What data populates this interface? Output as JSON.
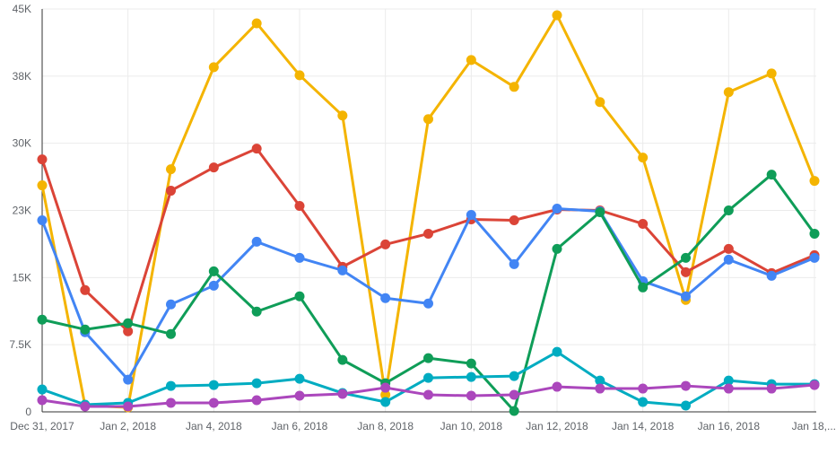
{
  "chart_data": {
    "type": "line",
    "title": "",
    "xlabel": "",
    "ylabel": "",
    "ylim": [
      0,
      45000
    ],
    "grid": true,
    "x": [
      "Dec 31, 2017",
      "Jan 1, 2018",
      "Jan 2, 2018",
      "Jan 3, 2018",
      "Jan 4, 2018",
      "Jan 5, 2018",
      "Jan 6, 2018",
      "Jan 7, 2018",
      "Jan 8, 2018",
      "Jan 9, 2018",
      "Jan 10, 2018",
      "Jan 11, 2018",
      "Jan 12, 2018",
      "Jan 13, 2018",
      "Jan 14, 2018",
      "Jan 15, 2018",
      "Jan 16, 2018",
      "Jan 17, 2018",
      "Jan 18, 2018"
    ],
    "x_tick_labels": [
      "Dec 31, 2017",
      "Jan 2, 2018",
      "Jan 4, 2018",
      "Jan 6, 2018",
      "Jan 8, 2018",
      "Jan 10, 2018",
      "Jan 12, 2018",
      "Jan 14, 2018",
      "Jan 16, 2018",
      "Jan 18,..."
    ],
    "y_ticks": [
      0,
      7500,
      15000,
      22500,
      30000,
      37500,
      45000
    ],
    "y_tick_labels": [
      "0",
      "7.5K",
      "15K",
      "23K",
      "30K",
      "38K",
      "45K"
    ],
    "series": [
      {
        "name": "yellow",
        "color": "#f4b400",
        "values": [
          25300,
          700,
          500,
          27100,
          38500,
          43400,
          37600,
          33100,
          1900,
          32700,
          39300,
          36300,
          44300,
          34600,
          28400,
          12500,
          35700,
          37800,
          25800
        ]
      },
      {
        "name": "red",
        "color": "#db4437",
        "values": [
          28200,
          13600,
          9000,
          24700,
          27300,
          29400,
          23000,
          16200,
          18700,
          19900,
          21500,
          21400,
          22600,
          22500,
          21000,
          15600,
          18200,
          15500,
          17500
        ]
      },
      {
        "name": "blue",
        "color": "#4285f4",
        "values": [
          21400,
          8900,
          3600,
          12000,
          14100,
          19000,
          17200,
          15800,
          12700,
          12100,
          22000,
          16500,
          22700,
          22400,
          14600,
          12900,
          17000,
          15200,
          17200
        ]
      },
      {
        "name": "green",
        "color": "#0f9d58",
        "values": [
          10300,
          9200,
          9900,
          8700,
          15700,
          11200,
          12900,
          5800,
          3200,
          6000,
          5400,
          100,
          18200,
          22300,
          13900,
          17200,
          22500,
          26500,
          19900
        ]
      },
      {
        "name": "teal",
        "color": "#00acc1",
        "values": [
          2500,
          800,
          1000,
          2900,
          3000,
          3200,
          3700,
          2100,
          1100,
          3800,
          3900,
          4000,
          6700,
          3500,
          1100,
          700,
          3500,
          3100,
          3100
        ]
      },
      {
        "name": "purple",
        "color": "#ab47bc",
        "values": [
          1300,
          600,
          600,
          1000,
          1000,
          1300,
          1800,
          2000,
          2700,
          1900,
          1800,
          1900,
          2800,
          2600,
          2600,
          2900,
          2600,
          2600,
          3000
        ]
      }
    ]
  }
}
